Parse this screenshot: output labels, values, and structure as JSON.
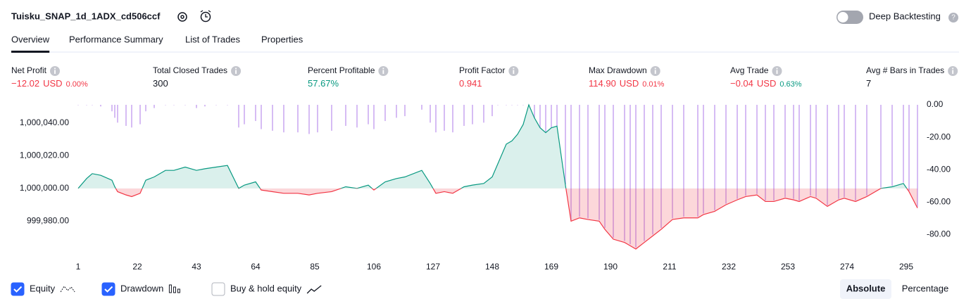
{
  "header": {
    "title": "Tuisku_SNAP_1d_1ADX_cd506ccf",
    "toggle_label": "Deep Backtesting"
  },
  "tabs": [
    "Overview",
    "Performance Summary",
    "List of Trades",
    "Properties"
  ],
  "metrics": [
    {
      "label": "Net Profit",
      "value": "−12.02",
      "unit": "USD",
      "pct": "0.00%",
      "color": "#f23645",
      "pct_color": "#f23645"
    },
    {
      "label": "Total Closed Trades",
      "value": "300",
      "color": "#131722"
    },
    {
      "label": "Percent Profitable",
      "value": "57.67%",
      "color": "#089981"
    },
    {
      "label": "Profit Factor",
      "value": "0.941",
      "color": "#f23645"
    },
    {
      "label": "Max Drawdown",
      "value": "114.90",
      "unit": "USD",
      "pct": "0.01%",
      "color": "#f23645",
      "pct_color": "#f23645"
    },
    {
      "label": "Avg Trade",
      "value": "−0.04",
      "unit": "USD",
      "pct": "0.63%",
      "color": "#f23645",
      "pct_color": "#089981"
    },
    {
      "label": "Avg # Bars in Trades",
      "value": "7",
      "color": "#131722"
    }
  ],
  "bottom": {
    "buy_hold": "Buy & hold equity",
    "buttons": [
      "Absolute",
      "Percentage"
    ]
  },
  "chart_data": {
    "type": "line",
    "x": [
      1,
      4,
      6,
      9,
      13,
      14,
      15,
      18,
      20,
      23,
      25,
      28,
      32,
      35,
      39,
      43,
      46,
      50,
      54,
      58,
      60,
      64,
      66,
      70,
      74,
      79,
      83,
      86,
      91,
      96,
      100,
      104,
      106,
      110,
      114,
      117,
      123,
      126,
      128,
      131,
      134,
      138,
      141,
      145,
      148,
      150,
      153,
      155,
      157,
      159,
      161,
      163,
      165,
      167,
      169,
      171,
      174,
      176,
      179,
      182,
      186,
      188,
      191,
      195,
      197,
      199,
      202,
      205,
      208,
      212,
      216,
      221,
      223,
      227,
      231,
      235,
      238,
      242,
      245,
      248,
      252,
      255,
      257,
      261,
      263,
      267,
      271,
      273,
      277,
      281,
      286,
      290,
      294,
      296,
      299
    ],
    "series": [
      {
        "name": "Equity",
        "color": "#089981",
        "negative_color": "#f23645",
        "values": [
          1000000,
          1000006,
          1000009,
          1000008,
          1000005,
          1000001,
          999998,
          999996,
          999995,
          999997,
          1000005,
          1000007,
          1000011,
          1000011,
          1000013,
          1000011,
          1000012,
          1000013,
          1000014,
          1000000,
          1000002,
          1000004,
          999999,
          999998,
          999997,
          999997,
          999996,
          999997,
          999998,
          1000001,
          1000000,
          1000002,
          999999,
          1000004,
          1000006,
          1000007,
          1000011,
          1000003,
          999997,
          999998,
          999997,
          1000001,
          1000002,
          1000003,
          1000007,
          1000015,
          1000027,
          1000029,
          1000033,
          1000039,
          1000051,
          1000043,
          1000037,
          1000034,
          1000037,
          1000038,
          1000002,
          999980,
          999982,
          999981,
          999980,
          999975,
          999969,
          999967,
          999965,
          999963,
          999967,
          999971,
          999975,
          999981,
          999982,
          999982,
          999984,
          999986,
          999990,
          999993,
          999995,
          999996,
          999992,
          999992,
          999994,
          999993,
          999992,
          999995,
          999994,
          999989,
          999993,
          999994,
          999992,
          999995,
          1000000,
          1000001,
          1000003,
          999998,
          999988
        ]
      },
      {
        "name": "Drawdown",
        "color": "#cfb0f2",
        "axis": "y2",
        "values": [
          0,
          0,
          0,
          -1,
          -4,
          -8,
          -11,
          -13,
          -14,
          -12,
          -4,
          -2,
          0,
          0,
          0,
          -2,
          -1,
          0,
          0,
          -14,
          -12,
          -10,
          -15,
          -16,
          -17,
          -17,
          -18,
          -17,
          -16,
          -13,
          -14,
          -12,
          -15,
          -10,
          -8,
          -7,
          -3,
          -11,
          -17,
          -16,
          -17,
          -13,
          -12,
          -11,
          -7,
          0,
          0,
          0,
          0,
          0,
          0,
          -8,
          -14,
          -17,
          -14,
          -13,
          -49,
          -71,
          -69,
          -70,
          -71,
          -76,
          -82,
          -84,
          -86,
          -88,
          -84,
          -80,
          -76,
          -70,
          -69,
          -69,
          -67,
          -65,
          -61,
          -58,
          -56,
          -55,
          -59,
          -59,
          -57,
          -58,
          -59,
          -56,
          -57,
          -62,
          -58,
          -57,
          -59,
          -56,
          -51,
          -50,
          -48,
          -53,
          -63
        ]
      }
    ],
    "xlim": [
      0,
      300
    ],
    "xticks": [
      1,
      22,
      43,
      64,
      85,
      106,
      127,
      148,
      169,
      190,
      211,
      232,
      253,
      274,
      295
    ],
    "ylim": [
      999960,
      1000051
    ],
    "yticks": [
      {
        "value": 999980,
        "label": "999,980.00"
      },
      {
        "value": 1000000,
        "label": "1,000,000.00"
      },
      {
        "value": 1000020,
        "label": "1,000,020.00"
      },
      {
        "value": 1000040,
        "label": "1,000,040.00"
      }
    ],
    "y2lim": [
      -92,
      0
    ],
    "y2ticks": [
      {
        "value": 0,
        "label": "0.00"
      },
      {
        "value": -20,
        "label": "-20.00"
      },
      {
        "value": -40,
        "label": "-40.00"
      },
      {
        "value": -60,
        "label": "-60.00"
      },
      {
        "value": -80,
        "label": "-80.00"
      }
    ],
    "baseline": 1000000
  }
}
